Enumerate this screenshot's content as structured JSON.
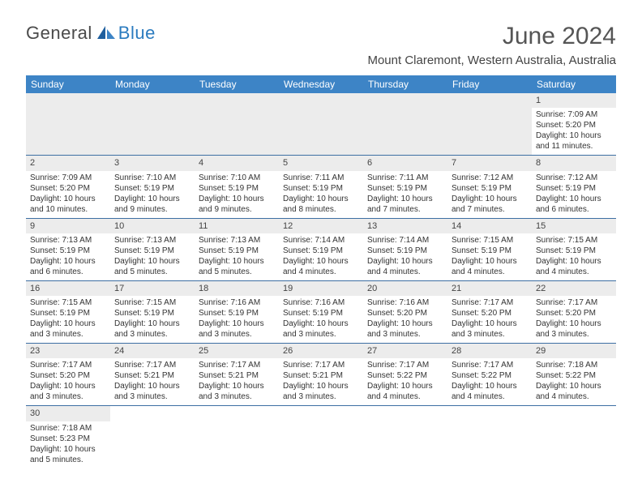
{
  "logo": {
    "part1": "General",
    "part2": "Blue"
  },
  "title": "June 2024",
  "location": "Mount Claremont, Western Australia, Australia",
  "colors": {
    "header_bg": "#3d84c6",
    "header_text": "#ffffff",
    "daynum_bg": "#ececec",
    "cell_border": "#3d6fa3",
    "logo_blue": "#2b7bbf",
    "logo_gray": "#4a4a4a"
  },
  "weekdays": [
    "Sunday",
    "Monday",
    "Tuesday",
    "Wednesday",
    "Thursday",
    "Friday",
    "Saturday"
  ],
  "weeks": [
    [
      null,
      null,
      null,
      null,
      null,
      null,
      {
        "n": "1",
        "sr": "7:09 AM",
        "ss": "5:20 PM",
        "dl": "10 hours and 11 minutes."
      }
    ],
    [
      {
        "n": "2",
        "sr": "7:09 AM",
        "ss": "5:20 PM",
        "dl": "10 hours and 10 minutes."
      },
      {
        "n": "3",
        "sr": "7:10 AM",
        "ss": "5:19 PM",
        "dl": "10 hours and 9 minutes."
      },
      {
        "n": "4",
        "sr": "7:10 AM",
        "ss": "5:19 PM",
        "dl": "10 hours and 9 minutes."
      },
      {
        "n": "5",
        "sr": "7:11 AM",
        "ss": "5:19 PM",
        "dl": "10 hours and 8 minutes."
      },
      {
        "n": "6",
        "sr": "7:11 AM",
        "ss": "5:19 PM",
        "dl": "10 hours and 7 minutes."
      },
      {
        "n": "7",
        "sr": "7:12 AM",
        "ss": "5:19 PM",
        "dl": "10 hours and 7 minutes."
      },
      {
        "n": "8",
        "sr": "7:12 AM",
        "ss": "5:19 PM",
        "dl": "10 hours and 6 minutes."
      }
    ],
    [
      {
        "n": "9",
        "sr": "7:13 AM",
        "ss": "5:19 PM",
        "dl": "10 hours and 6 minutes."
      },
      {
        "n": "10",
        "sr": "7:13 AM",
        "ss": "5:19 PM",
        "dl": "10 hours and 5 minutes."
      },
      {
        "n": "11",
        "sr": "7:13 AM",
        "ss": "5:19 PM",
        "dl": "10 hours and 5 minutes."
      },
      {
        "n": "12",
        "sr": "7:14 AM",
        "ss": "5:19 PM",
        "dl": "10 hours and 4 minutes."
      },
      {
        "n": "13",
        "sr": "7:14 AM",
        "ss": "5:19 PM",
        "dl": "10 hours and 4 minutes."
      },
      {
        "n": "14",
        "sr": "7:15 AM",
        "ss": "5:19 PM",
        "dl": "10 hours and 4 minutes."
      },
      {
        "n": "15",
        "sr": "7:15 AM",
        "ss": "5:19 PM",
        "dl": "10 hours and 4 minutes."
      }
    ],
    [
      {
        "n": "16",
        "sr": "7:15 AM",
        "ss": "5:19 PM",
        "dl": "10 hours and 3 minutes."
      },
      {
        "n": "17",
        "sr": "7:15 AM",
        "ss": "5:19 PM",
        "dl": "10 hours and 3 minutes."
      },
      {
        "n": "18",
        "sr": "7:16 AM",
        "ss": "5:19 PM",
        "dl": "10 hours and 3 minutes."
      },
      {
        "n": "19",
        "sr": "7:16 AM",
        "ss": "5:19 PM",
        "dl": "10 hours and 3 minutes."
      },
      {
        "n": "20",
        "sr": "7:16 AM",
        "ss": "5:20 PM",
        "dl": "10 hours and 3 minutes."
      },
      {
        "n": "21",
        "sr": "7:17 AM",
        "ss": "5:20 PM",
        "dl": "10 hours and 3 minutes."
      },
      {
        "n": "22",
        "sr": "7:17 AM",
        "ss": "5:20 PM",
        "dl": "10 hours and 3 minutes."
      }
    ],
    [
      {
        "n": "23",
        "sr": "7:17 AM",
        "ss": "5:20 PM",
        "dl": "10 hours and 3 minutes."
      },
      {
        "n": "24",
        "sr": "7:17 AM",
        "ss": "5:21 PM",
        "dl": "10 hours and 3 minutes."
      },
      {
        "n": "25",
        "sr": "7:17 AM",
        "ss": "5:21 PM",
        "dl": "10 hours and 3 minutes."
      },
      {
        "n": "26",
        "sr": "7:17 AM",
        "ss": "5:21 PM",
        "dl": "10 hours and 3 minutes."
      },
      {
        "n": "27",
        "sr": "7:17 AM",
        "ss": "5:22 PM",
        "dl": "10 hours and 4 minutes."
      },
      {
        "n": "28",
        "sr": "7:17 AM",
        "ss": "5:22 PM",
        "dl": "10 hours and 4 minutes."
      },
      {
        "n": "29",
        "sr": "7:18 AM",
        "ss": "5:22 PM",
        "dl": "10 hours and 4 minutes."
      }
    ],
    [
      {
        "n": "30",
        "sr": "7:18 AM",
        "ss": "5:23 PM",
        "dl": "10 hours and 5 minutes."
      },
      null,
      null,
      null,
      null,
      null,
      null
    ]
  ],
  "labels": {
    "sunrise": "Sunrise:",
    "sunset": "Sunset:",
    "daylight": "Daylight:"
  }
}
